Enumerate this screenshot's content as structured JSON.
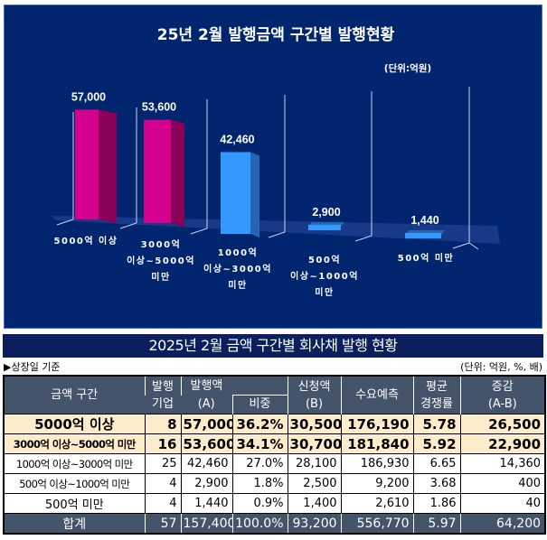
{
  "chart_data": {
    "type": "bar",
    "title": "25년 2월 발행금액 구간별 발행현황",
    "unit_label": "(단위:억원)",
    "categories": [
      [
        "5000억 이상"
      ],
      [
        "3000억",
        "이상~5000억",
        "미만"
      ],
      [
        "1000억",
        "이상~3000억",
        "미만"
      ],
      [
        "500억",
        "이상~1000억",
        "미만"
      ],
      [
        "500억 미만"
      ]
    ],
    "values": [
      57000,
      53600,
      42460,
      2900,
      1440
    ],
    "value_labels": [
      "57,000",
      "53,600",
      "42,460",
      "2,900",
      "1,440"
    ],
    "bar_colors": [
      "#d6008f",
      "#d6008f",
      "#3399ff",
      "#3399ff",
      "#3399ff"
    ],
    "bar_side_colors": [
      "#8a0058",
      "#8a0058",
      "#2466b0",
      "#2466b0",
      "#2466b0"
    ],
    "background": "#00256f",
    "ylim": [
      0,
      60000
    ],
    "xlabel": "",
    "ylabel": "",
    "grid": false,
    "legend": "none",
    "style": "3d-column"
  },
  "table": {
    "title": "2025년 2월 금액 구간별 회사채 발행 현황",
    "basis_note": "▶상장일 기준",
    "unit_note": "(단위: 억원, %, 배)",
    "headers": {
      "range": "금액 구간",
      "companies_top": "발행",
      "companies_bottom": "기업",
      "amount_top": "발행액",
      "amount_bottom": "(A)",
      "ratio": "비중",
      "subscribed_top": "신청액",
      "subscribed_bottom": "(B)",
      "demand": "수요예측",
      "competition_top": "평균",
      "competition_bottom": "경쟁률",
      "diff_top": "증감",
      "diff_bottom": "(A-B)"
    },
    "rows": [
      {
        "range": "5000억 이상",
        "companies": "8",
        "amount": "57,000",
        "ratio": "36.2%",
        "subscribed": "30,500",
        "demand": "176,190",
        "competition": "5.78",
        "diff": "26,500",
        "highlight": true
      },
      {
        "range": "3000억 이상~5000억 미만",
        "companies": "16",
        "amount": "53,600",
        "ratio": "34.1%",
        "subscribed": "30,700",
        "demand": "181,840",
        "competition": "5.92",
        "diff": "22,900",
        "highlight": true
      },
      {
        "range": "1000억 이상~3000억 미만",
        "companies": "25",
        "amount": "42,460",
        "ratio": "27.0%",
        "subscribed": "28,100",
        "demand": "186,930",
        "competition": "6.65",
        "diff": "14,360",
        "highlight": false
      },
      {
        "range": "500억 이상~1000억 미만",
        "companies": "4",
        "amount": "2,900",
        "ratio": "1.8%",
        "subscribed": "2,500",
        "demand": "9,200",
        "competition": "3.68",
        "diff": "400",
        "highlight": false
      },
      {
        "range": "500억 미만",
        "companies": "4",
        "amount": "1,440",
        "ratio": "0.9%",
        "subscribed": "1,400",
        "demand": "2,610",
        "competition": "1.86",
        "diff": "40",
        "highlight": false
      }
    ],
    "total": {
      "range": "합계",
      "companies": "57",
      "amount": "157,400",
      "ratio": "100.0%",
      "subscribed": "93,200",
      "demand": "556,770",
      "competition": "5.97",
      "diff": "64,200"
    },
    "colors": {
      "title_bg": "#0a1f5c",
      "header_bg": "#44546a",
      "highlight_bg": "#fdeccb"
    }
  }
}
